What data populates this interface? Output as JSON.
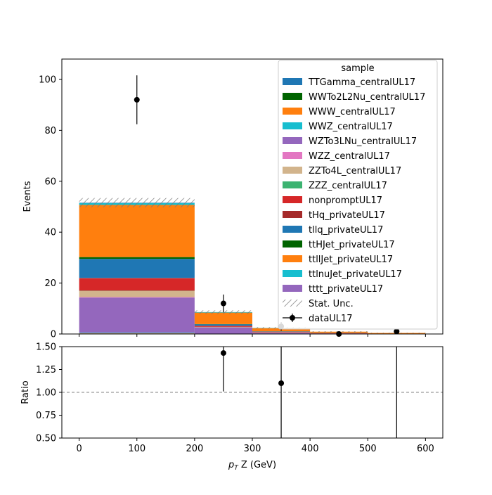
{
  "chart_data": {
    "type": "bar",
    "stacked": true,
    "bin_edges": [
      0,
      200,
      300,
      400,
      500,
      600
    ],
    "xlim": [
      -30,
      630
    ],
    "xlabel_prefix": "p",
    "xlabel_sub": "T",
    "xlabel_suffix": " Z (GeV)",
    "xticks": [
      "0",
      "100",
      "200",
      "300",
      "400",
      "500",
      "600"
    ],
    "xtick_values": [
      0,
      100,
      200,
      300,
      400,
      500,
      600
    ],
    "main": {
      "ylabel": "Events",
      "ylim": [
        0,
        108
      ],
      "yticks": [
        "0",
        "20",
        "40",
        "60",
        "80",
        "100"
      ],
      "ytick_values": [
        0,
        20,
        40,
        60,
        80,
        100
      ],
      "series": [
        {
          "name": "TTGamma_centralUL17",
          "color": "#1f77b4",
          "values": [
            0.2,
            0.0,
            0.0,
            0.0,
            0.0
          ]
        },
        {
          "name": "WWTo2L2Nu_centralUL17",
          "color": "#006400",
          "values": [
            0.0,
            0.0,
            0.0,
            0.0,
            0.0
          ]
        },
        {
          "name": "WWW_centralUL17",
          "color": "#ff7f0e",
          "values": [
            0.1,
            0.0,
            0.0,
            0.0,
            0.0
          ]
        },
        {
          "name": "WWZ_centralUL17",
          "color": "#17becf",
          "values": [
            0.2,
            0.0,
            0.0,
            0.0,
            0.0
          ]
        },
        {
          "name": "WZTo3LNu_centralUL17",
          "color": "#9467bd",
          "values": [
            13.8,
            2.6,
            0.5,
            0.2,
            0.1
          ]
        },
        {
          "name": "WZZ_centralUL17",
          "color": "#e377c2",
          "values": [
            0.2,
            0.0,
            0.0,
            0.0,
            0.0
          ]
        },
        {
          "name": "ZZTo4L_centralUL17",
          "color": "#d2b48c",
          "values": [
            2.4,
            0.2,
            0.1,
            0.0,
            0.0
          ]
        },
        {
          "name": "ZZZ_centralUL17",
          "color": "#3cb371",
          "values": [
            0.1,
            0.0,
            0.0,
            0.0,
            0.0
          ]
        },
        {
          "name": "nonpromptUL17",
          "color": "#d62728",
          "values": [
            4.9,
            0.4,
            0.2,
            0.1,
            0.0
          ]
        },
        {
          "name": "tHq_privateUL17",
          "color": "#a52a2a",
          "values": [
            0.1,
            0.0,
            0.0,
            0.0,
            0.0
          ]
        },
        {
          "name": "tllq_privateUL17",
          "color": "#1f77b4",
          "values": [
            7.5,
            0.6,
            0.2,
            0.1,
            0.0
          ]
        },
        {
          "name": "ttHJet_privateUL17",
          "color": "#006400",
          "values": [
            0.7,
            0.1,
            0.0,
            0.0,
            0.0
          ]
        },
        {
          "name": "ttllJet_privateUL17",
          "color": "#ff7f0e",
          "values": [
            20.5,
            4.5,
            1.3,
            0.5,
            0.3
          ]
        },
        {
          "name": "ttlnuJet_privateUL17",
          "color": "#17becf",
          "values": [
            0.8,
            0.2,
            0.1,
            0.0,
            0.0
          ]
        },
        {
          "name": "tttt_privateUL17",
          "color": "#9467bd",
          "values": [
            0.1,
            0.0,
            0.0,
            0.0,
            0.0
          ]
        }
      ],
      "stat_unc": [
        1.8,
        0.7,
        0.3,
        0.2,
        0.1
      ],
      "data": {
        "name": "dataUL17",
        "x": [
          100,
          250,
          350,
          450,
          550
        ],
        "y": [
          92,
          12,
          3,
          0,
          1
        ],
        "yerr": [
          9.6,
          3.5,
          1.7,
          0,
          1.0
        ]
      },
      "legend": {
        "title": "sample",
        "stat_unc_label": "Stat. Unc.",
        "placement": "upper right"
      }
    },
    "ratio": {
      "ylabel": "Ratio",
      "ylim": [
        0.5,
        1.5
      ],
      "yticks": [
        "0.50",
        "0.75",
        "1.00",
        "1.25",
        "1.50"
      ],
      "ytick_values": [
        0.5,
        0.75,
        1.0,
        1.25,
        1.5
      ],
      "reference_line": 1.0,
      "points": [
        {
          "x": 250,
          "y": 1.43,
          "lo": 1.01,
          "hi": 1.9
        },
        {
          "x": 350,
          "y": 1.1,
          "lo": 0.4,
          "hi": 2.0
        },
        {
          "x": 550,
          "y": 2.0,
          "lo": 0.0,
          "hi": 4.0
        }
      ]
    }
  }
}
